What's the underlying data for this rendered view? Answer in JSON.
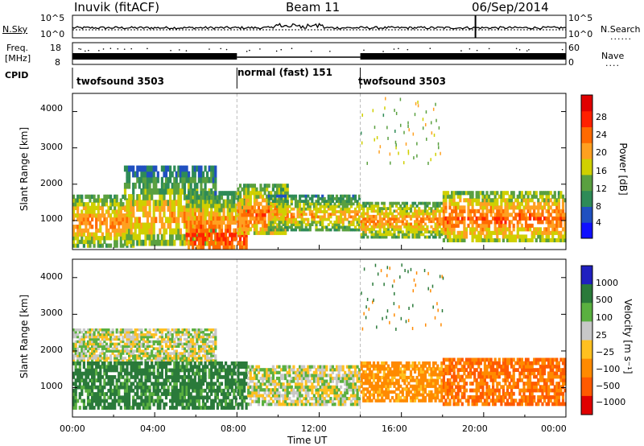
{
  "header": {
    "station": "Inuvik  (fitACF)",
    "beam": "Beam 11",
    "date": "06/Sep/2014"
  },
  "strips": {
    "nsky_label": "N.Sky",
    "nsky_ticks": [
      "10^5",
      "10^0"
    ],
    "nsearch_label": "N.Search",
    "freq_label_1": "Freq.",
    "freq_label_2": "[MHz]",
    "freq_ticks_left": [
      "18",
      "8"
    ],
    "nave_ticks_right": [
      "60",
      "0"
    ],
    "nave_label": "Nave",
    "cpid_label": "CPID"
  },
  "cpid_modes": [
    {
      "label": "twofsound 3503",
      "start": 0,
      "end": 8
    },
    {
      "label": "normal (fast) 151",
      "start": 8,
      "end": 14
    },
    {
      "label": "twofsound 3503",
      "start": 14,
      "end": 24
    }
  ],
  "x_axis": {
    "label": "Time UT",
    "ticks": [
      "00:00",
      "04:00",
      "08:00",
      "12:00",
      "16:00",
      "20:00",
      "00:00"
    ]
  },
  "colors": {
    "power": [
      "#1010ff",
      "#2050c0",
      "#2e8b57",
      "#5aa040",
      "#d0d000",
      "#ffa020",
      "#ff6a00",
      "#ff2000",
      "#e00000"
    ],
    "velocity": [
      "#2020c0",
      "#2a7a3a",
      "#5ab040",
      "#c8c8c8",
      "#ffc020",
      "#ff8a00",
      "#ff5a00",
      "#e00000"
    ]
  },
  "chart_data": [
    {
      "type": "heatmap",
      "name": "power_panel",
      "xlabel": "Time UT",
      "ylabel": "Slant Range [km]",
      "xlim": [
        0,
        24
      ],
      "ylim": [
        200,
        4500
      ],
      "yticks": [
        "1000",
        "2000",
        "3000",
        "4000"
      ],
      "colorbar": {
        "label": "Power [dB]",
        "ticks": [
          "4",
          "8",
          "12",
          "16",
          "20",
          "24",
          "28"
        ],
        "range": [
          0,
          32
        ]
      },
      "regions": [
        {
          "t0": 0.0,
          "t1": 3.0,
          "r0": 250,
          "r1": 1700,
          "core": 900,
          "level": 22
        },
        {
          "t0": 2.5,
          "t1": 7.0,
          "r0": 300,
          "r1": 2500,
          "core": 1000,
          "level": 20
        },
        {
          "t0": 5.5,
          "t1": 8.5,
          "r0": 200,
          "r1": 1800,
          "core": 500,
          "level": 26
        },
        {
          "t0": 8.0,
          "t1": 10.5,
          "r0": 600,
          "r1": 2000,
          "core": 1100,
          "level": 24
        },
        {
          "t0": 9.5,
          "t1": 14.0,
          "r0": 700,
          "r1": 1700,
          "core": 1100,
          "level": 20
        },
        {
          "t0": 14.0,
          "t1": 18.0,
          "r0": 500,
          "r1": 1500,
          "core": 950,
          "level": 22
        },
        {
          "t0": 18.0,
          "t1": 24.0,
          "r0": 400,
          "r1": 1800,
          "core": 1000,
          "level": 24
        }
      ]
    },
    {
      "type": "heatmap",
      "name": "velocity_panel",
      "xlabel": "Time UT",
      "ylabel": "Slant Range [km]",
      "xlim": [
        0,
        24
      ],
      "ylim": [
        200,
        4500
      ],
      "yticks": [
        "1000",
        "2000",
        "3000",
        "4000"
      ],
      "colorbar": {
        "label": "Velocity [m s⁻¹]",
        "ticks": [
          "1000",
          "500",
          "100",
          "25",
          "−25",
          "−100",
          "−500",
          "−1000"
        ]
      },
      "regions": [
        {
          "t0": 0.0,
          "t1": 7.0,
          "r0": 1700,
          "r1": 2600,
          "vel": 0
        },
        {
          "t0": 0.0,
          "t1": 8.5,
          "r0": 400,
          "r1": 1700,
          "vel": 150
        },
        {
          "t0": 8.5,
          "t1": 14.0,
          "r0": 500,
          "r1": 1600,
          "vel": 0
        },
        {
          "t0": 14.0,
          "t1": 18.0,
          "r0": 600,
          "r1": 1700,
          "vel": -150
        },
        {
          "t0": 18.0,
          "t1": 24.0,
          "r0": 500,
          "r1": 1800,
          "vel": -300
        }
      ]
    }
  ]
}
